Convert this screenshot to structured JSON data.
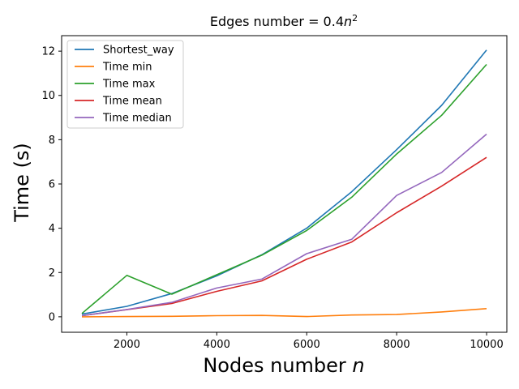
{
  "chart_data": {
    "type": "line",
    "title_main": "Edges number = 0.4",
    "title_var": "n",
    "title_exp": "2",
    "xlabel_main": "Nodes number",
    "xlabel_var": "n",
    "ylabel": "Time (s)",
    "xlim": [
      550,
      10450
    ],
    "ylim": [
      -0.7,
      12.7
    ],
    "xticks": [
      2000,
      4000,
      6000,
      8000,
      10000
    ],
    "yticks": [
      0,
      2,
      4,
      6,
      8,
      10,
      12
    ],
    "grid": false,
    "legend_position": "upper-left",
    "x": [
      1000,
      2000,
      3000,
      4000,
      5000,
      6000,
      7000,
      8000,
      9000,
      10000
    ],
    "series": [
      {
        "name": "Shortest_way",
        "color": "#1f77b4",
        "values": [
          0.12,
          0.47,
          1.05,
          1.85,
          2.8,
          4.0,
          5.65,
          7.55,
          9.55,
          12.05
        ]
      },
      {
        "name": "Time min",
        "color": "#ff7f0e",
        "values": [
          0.0,
          0.01,
          0.02,
          0.05,
          0.06,
          0.01,
          0.08,
          0.1,
          0.22,
          0.37
        ]
      },
      {
        "name": "Time max",
        "color": "#2ca02c",
        "values": [
          0.15,
          1.87,
          1.02,
          1.9,
          2.78,
          3.9,
          5.4,
          7.35,
          9.1,
          11.4
        ]
      },
      {
        "name": "Time mean",
        "color": "#d62728",
        "values": [
          0.05,
          0.32,
          0.6,
          1.15,
          1.62,
          2.6,
          3.38,
          4.7,
          5.9,
          7.2
        ]
      },
      {
        "name": "Time median",
        "color": "#9467bd",
        "values": [
          0.05,
          0.33,
          0.65,
          1.3,
          1.7,
          2.85,
          3.5,
          5.48,
          6.52,
          8.25
        ]
      }
    ]
  }
}
